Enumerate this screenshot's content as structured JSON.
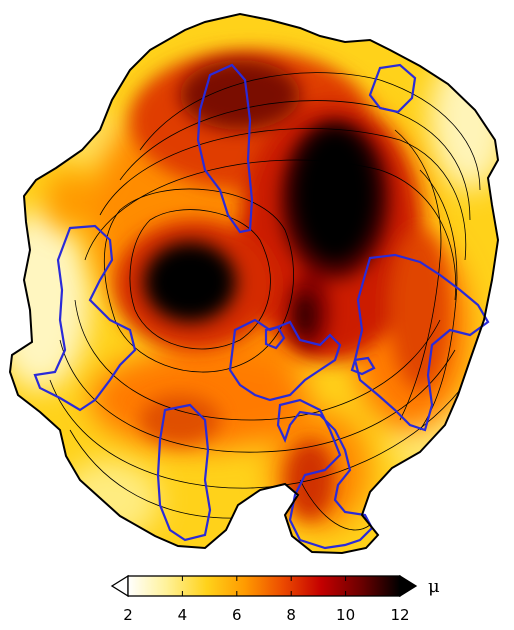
{
  "colorbar": {
    "unit": "μ",
    "range": [
      2,
      12
    ],
    "ticks": [
      "2",
      "4",
      "6",
      "8",
      "10",
      "12"
    ],
    "extend": "both",
    "colors": [
      "#ffffff",
      "#fff29a",
      "#ffd21a",
      "#ff9a00",
      "#ec4a00",
      "#c40000",
      "#6a0000",
      "#000000"
    ]
  },
  "map": {
    "land_outline_color": "#000000",
    "contour_color": "#000000",
    "region_outline_color": "#2a2ad8"
  }
}
